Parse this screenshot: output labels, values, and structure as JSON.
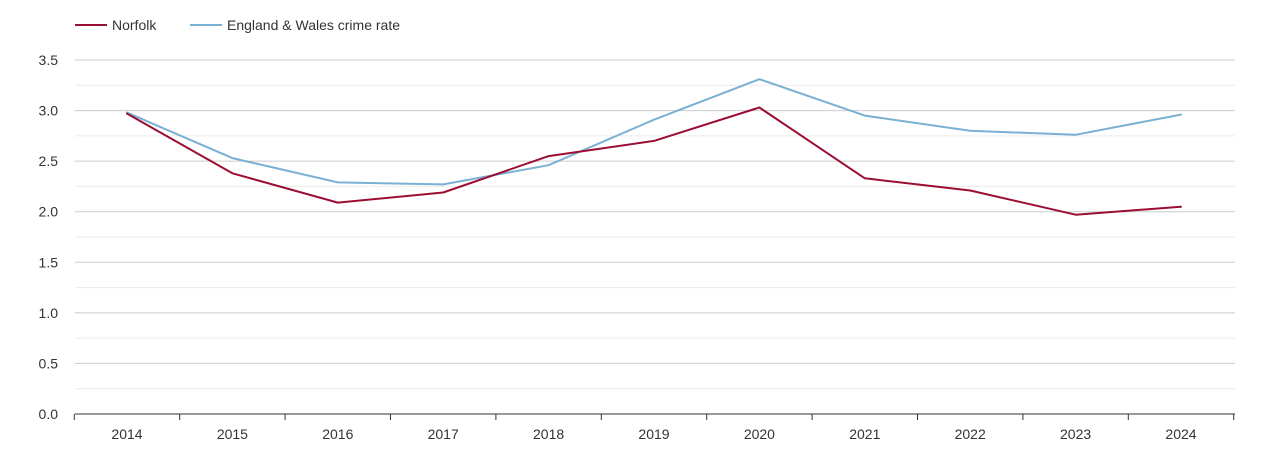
{
  "chart_data": {
    "type": "line",
    "title": "",
    "xlabel": "",
    "ylabel": "",
    "categories": [
      "2014",
      "2015",
      "2016",
      "2017",
      "2018",
      "2019",
      "2020",
      "2021",
      "2022",
      "2023",
      "2024"
    ],
    "series": [
      {
        "name": "Norfolk",
        "color": "#9b0d33",
        "values": [
          2.97,
          2.38,
          2.09,
          2.19,
          2.55,
          2.7,
          3.03,
          2.33,
          2.21,
          1.97,
          2.05
        ]
      },
      {
        "name": "England & Wales crime rate",
        "color": "#79b0d3",
        "values": [
          2.98,
          2.53,
          2.29,
          2.27,
          2.46,
          2.91,
          3.31,
          2.95,
          2.8,
          2.76,
          2.96
        ]
      }
    ],
    "ylim": [
      0,
      3.5
    ],
    "yticks": [
      "0.0",
      "0.5",
      "1.0",
      "1.5",
      "2.0",
      "2.5",
      "3.0",
      "3.5"
    ],
    "grid": true,
    "legend_position": "top-left"
  }
}
